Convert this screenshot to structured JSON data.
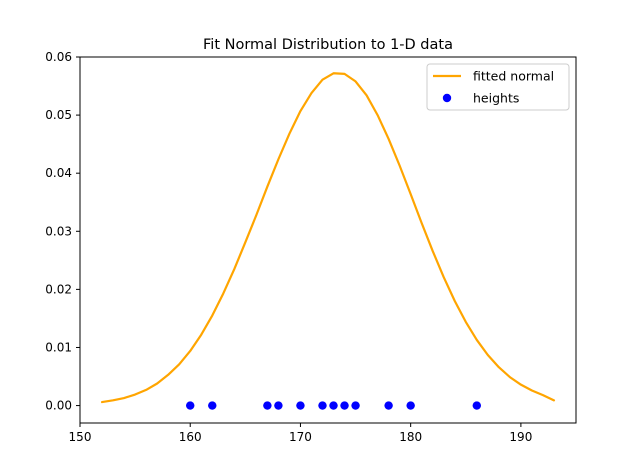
{
  "chart_data": {
    "type": "line",
    "title": "Fit Normal Distribution to 1-D data",
    "xlabel": "",
    "ylabel": "",
    "xlim": [
      150,
      195
    ],
    "ylim": [
      -0.003,
      0.06
    ],
    "xticks": [
      150,
      160,
      170,
      180,
      190
    ],
    "yticks": [
      0.0,
      0.01,
      0.02,
      0.03,
      0.04,
      0.05,
      0.06
    ],
    "ytick_labels": [
      "0.00",
      "0.01",
      "0.02",
      "0.03",
      "0.04",
      "0.05",
      "0.06"
    ],
    "grid": false,
    "legend_position": "top-right",
    "series": [
      {
        "name": "fitted normal",
        "kind": "line",
        "color": "#ffa500",
        "x": [
          152,
          153,
          154,
          155,
          156,
          157,
          158,
          159,
          160,
          161,
          162,
          163,
          164,
          165,
          166,
          167,
          168,
          169,
          170,
          171,
          172,
          173,
          174,
          175,
          176,
          177,
          178,
          179,
          180,
          181,
          182,
          183,
          184,
          185,
          186,
          187,
          188,
          189,
          190,
          191,
          192,
          193
        ],
        "y": [
          0.0006,
          0.0009,
          0.0013,
          0.0019,
          0.0027,
          0.0038,
          0.0053,
          0.0071,
          0.0094,
          0.0122,
          0.0155,
          0.0193,
          0.0235,
          0.0281,
          0.0328,
          0.0377,
          0.0424,
          0.0468,
          0.0507,
          0.0538,
          0.0561,
          0.0572,
          0.0571,
          0.0558,
          0.0534,
          0.05,
          0.0459,
          0.0413,
          0.0364,
          0.0314,
          0.0266,
          0.0221,
          0.018,
          0.0144,
          0.0113,
          0.0087,
          0.0066,
          0.0049,
          0.0036,
          0.0026,
          0.0018,
          0.0009
        ]
      },
      {
        "name": "heights",
        "kind": "scatter",
        "color": "#0000ff",
        "x": [
          160,
          162,
          167,
          168,
          170,
          172,
          173,
          174,
          175,
          178,
          180,
          186
        ],
        "y": [
          0,
          0,
          0,
          0,
          0,
          0,
          0,
          0,
          0,
          0,
          0,
          0
        ]
      }
    ]
  }
}
